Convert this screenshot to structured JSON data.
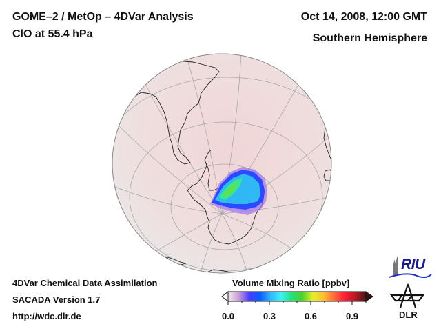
{
  "header": {
    "title": "GOME–2 / MetOp – 4DVar Analysis",
    "subtitle": "ClO at 55.4 hPa",
    "date": "Oct 14, 2008, 12:00 GMT",
    "region": "Southern Hemisphere"
  },
  "footer": {
    "line1": "4DVar Chemical Data Assimilation",
    "line2": "SACADA Version 1.7",
    "line3": "http://wdc.dlr.de"
  },
  "colorbar": {
    "title": "Volume Mixing Ratio [ppbv]",
    "ticks": [
      "0.0",
      "0.3",
      "0.6",
      "0.9"
    ],
    "tick_values": [
      0.0,
      0.3,
      0.6,
      0.9
    ],
    "range": [
      0.0,
      1.0
    ],
    "stops": [
      "#f3e9ea",
      "#c89fd8",
      "#4a3cff",
      "#0a5cff",
      "#33b4ff",
      "#3ef2f5",
      "#25e07a",
      "#4bd22c",
      "#e4f02a",
      "#ffc030",
      "#ff6a3a",
      "#ff1d3a",
      "#b81a24",
      "#4a1414"
    ],
    "extend": "both"
  },
  "map": {
    "projection": "orthographic",
    "ocean_color": "#ece2e2",
    "background_tint": "#f2d8d8",
    "coast_color": "#222222",
    "grid_color": "#a8a8a8"
  },
  "logos": {
    "riu": "RIU",
    "dlr": "DLR"
  }
}
